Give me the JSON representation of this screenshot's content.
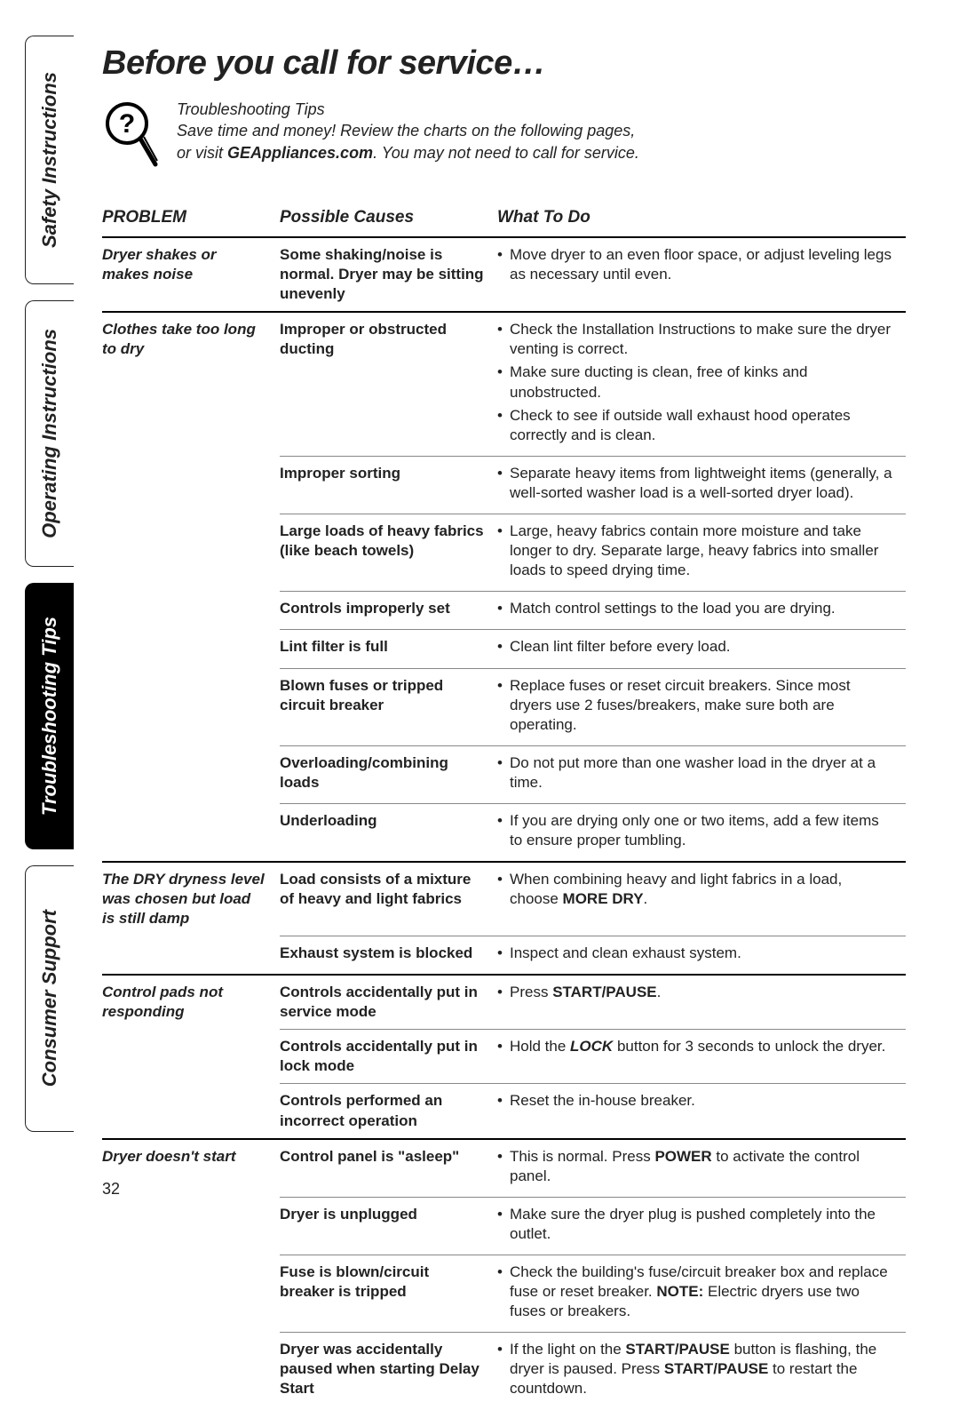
{
  "page_number": "32",
  "side_tabs": [
    {
      "id": "safety",
      "label": "Safety Instructions",
      "active": false
    },
    {
      "id": "operating",
      "label": "Operating Instructions",
      "active": false
    },
    {
      "id": "trouble",
      "label": "Troubleshooting Tips",
      "active": true
    },
    {
      "id": "consumer",
      "label": "Consumer Support",
      "active": false
    }
  ],
  "title": "Before you call for service…",
  "intro": {
    "heading": "Troubleshooting Tips",
    "line1": "Save time and money! Review the charts on the following pages,",
    "line2a": "or visit ",
    "line2_bold": "GEAppliances.com",
    "line2b": ". You may not need to call for service."
  },
  "table": {
    "headers": {
      "problem": "PROBLEM",
      "cause": "Possible Causes",
      "todo": "What To Do"
    },
    "rows": [
      {
        "problem": "Dryer shakes or makes noise",
        "cause": "Some shaking/noise is normal. Dryer may be sitting unevenly",
        "todo": [
          [
            {
              "t": "Move dryer to an even floor space, or adjust leveling legs as necessary until even."
            }
          ]
        ],
        "sep": "heavy",
        "first_of_problem": true
      },
      {
        "problem": "Clothes take too long to dry",
        "cause": "Improper or obstructed ducting",
        "todo": [
          [
            {
              "t": "Check the Installation Instructions to make sure the dryer venting is correct."
            }
          ],
          [
            {
              "t": "Make sure ducting is clean, free of kinks and unobstructed."
            }
          ],
          [
            {
              "t": "Check to see if outside wall exhaust hood operates correctly and is clean."
            }
          ]
        ],
        "sep": "heavy",
        "first_of_problem": true
      },
      {
        "cause": "Improper sorting",
        "todo": [
          [
            {
              "t": "Separate heavy items from lightweight items (generally, a well-sorted washer load is a well-sorted dryer load)."
            }
          ]
        ],
        "sep": "light"
      },
      {
        "cause": "Large loads of heavy fabrics (like beach towels)",
        "todo": [
          [
            {
              "t": "Large, heavy fabrics contain more moisture and take longer to dry. Separate large, heavy fabrics into smaller loads to speed drying time."
            }
          ]
        ],
        "sep": "light"
      },
      {
        "cause": "Controls improperly set",
        "todo": [
          [
            {
              "t": "Match control settings to the load you are drying."
            }
          ]
        ],
        "sep": "light"
      },
      {
        "cause": "Lint filter is full",
        "todo": [
          [
            {
              "t": "Clean lint filter before every load."
            }
          ]
        ],
        "sep": "light"
      },
      {
        "cause": "Blown fuses or tripped circuit breaker",
        "todo": [
          [
            {
              "t": "Replace fuses or reset circuit breakers. Since most dryers use 2 fuses/breakers, make sure both are operating."
            }
          ]
        ],
        "sep": "light"
      },
      {
        "cause": "Overloading/combining loads",
        "todo": [
          [
            {
              "t": "Do not put more than one washer load in the dryer at a time."
            }
          ]
        ],
        "sep": "light"
      },
      {
        "cause": "Underloading",
        "todo": [
          [
            {
              "t": "If you are drying only one or two items, add a few items to ensure proper tumbling."
            }
          ]
        ],
        "sep": "light"
      },
      {
        "problem": "The DRY dryness level was chosen but load is still damp",
        "cause": "Load consists of a mixture of heavy and light fabrics",
        "todo": [
          [
            {
              "t": "When combining heavy and light fabrics in a load, choose "
            },
            {
              "t": "MORE DRY",
              "cls": "b"
            },
            {
              "t": "."
            }
          ]
        ],
        "sep": "heavy",
        "first_of_problem": true
      },
      {
        "cause": "Exhaust system is blocked",
        "todo": [
          [
            {
              "t": "Inspect and clean exhaust system."
            }
          ]
        ],
        "sep": "light"
      },
      {
        "problem": "Control pads not responding",
        "cause": "Controls accidentally put in service mode",
        "todo": [
          [
            {
              "t": "Press "
            },
            {
              "t": "START/PAUSE",
              "cls": "b"
            },
            {
              "t": "."
            }
          ]
        ],
        "sep": "heavy",
        "first_of_problem": true
      },
      {
        "cause": "Controls accidentally put in lock mode",
        "todo": [
          [
            {
              "t": "Hold the "
            },
            {
              "t": "LOCK",
              "cls": "bi"
            },
            {
              "t": " button for 3 seconds to unlock the dryer."
            }
          ]
        ],
        "sep": "light"
      },
      {
        "cause": "Controls performed an incorrect operation",
        "todo": [
          [
            {
              "t": "Reset the in-house breaker."
            }
          ]
        ],
        "sep": "light"
      },
      {
        "problem": "Dryer doesn't start",
        "cause": "Control panel is \"asleep\"",
        "todo": [
          [
            {
              "t": "This is normal. Press "
            },
            {
              "t": "POWER",
              "cls": "b"
            },
            {
              "t": " to activate the control panel."
            }
          ]
        ],
        "sep": "heavy",
        "first_of_problem": true
      },
      {
        "cause": "Dryer is unplugged",
        "todo": [
          [
            {
              "t": "Make sure the dryer plug is pushed completely into the outlet."
            }
          ]
        ],
        "sep": "light"
      },
      {
        "cause": "Fuse is blown/circuit breaker is tripped",
        "todo": [
          [
            {
              "t": "Check the building's fuse/circuit breaker box and replace fuse or reset breaker. "
            },
            {
              "t": "NOTE:",
              "cls": "b"
            },
            {
              "t": " Electric dryers use two fuses or breakers."
            }
          ]
        ],
        "sep": "light"
      },
      {
        "cause": "Dryer was accidentally paused when starting Delay Start",
        "todo": [
          [
            {
              "t": "If the light on the "
            },
            {
              "t": "START/PAUSE",
              "cls": "b"
            },
            {
              "t": " button is flashing, the dryer is paused. Press "
            },
            {
              "t": "START/PAUSE",
              "cls": "b"
            },
            {
              "t": " to restart the countdown."
            }
          ]
        ],
        "sep": "light"
      }
    ]
  }
}
